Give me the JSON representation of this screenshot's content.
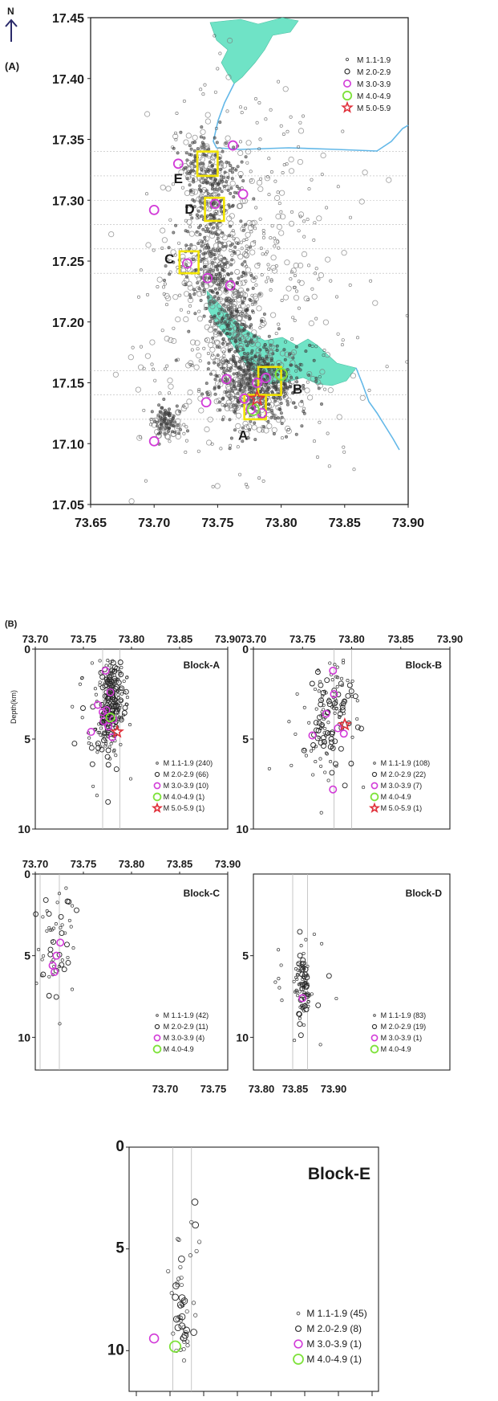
{
  "figure": {
    "panel_a_label": "(A)",
    "panel_b_label": "(B)",
    "north_label": "N",
    "depth_axis_label": "Depth(km)"
  },
  "colors": {
    "m1": "#555555",
    "m2": "#333333",
    "m3": "#d23bd8",
    "m4": "#7ee23a",
    "m5": "#e0303a",
    "water": "#6fe3c6",
    "river": "#63b8e8",
    "box": "#f2e400",
    "grid": "#b9b9b9"
  },
  "chart_data": [
    {
      "type": "scatter",
      "name": "map",
      "title": "",
      "xlabel": "",
      "ylabel": "",
      "xlim": [
        73.65,
        73.9
      ],
      "ylim": [
        17.05,
        17.45
      ],
      "x_ticks": [
        "73.65",
        "73.70",
        "73.75",
        "73.80",
        "73.85",
        "73.90"
      ],
      "y_ticks": [
        "17.05",
        "17.10",
        "17.15",
        "17.20",
        "17.25",
        "17.30",
        "17.35",
        "17.40",
        "17.45"
      ],
      "legend": [
        "M 1.1-1.9",
        "M 2.0-2.9",
        "M 3.0-3.9",
        "M 4.0-4.9",
        "M 5.0-5.9"
      ],
      "legend_position": "top-right",
      "block_labels": [
        {
          "text": "A",
          "x": 73.77,
          "y": 17.107
        },
        {
          "text": "B",
          "x": 73.813,
          "y": 17.145
        },
        {
          "text": "C",
          "x": 73.712,
          "y": 17.252
        },
        {
          "text": "D",
          "x": 73.728,
          "y": 17.293
        },
        {
          "text": "E",
          "x": 73.719,
          "y": 17.318
        }
      ],
      "blocks": [
        {
          "x0": 73.734,
          "x1": 73.75,
          "y0": 17.32,
          "y1": 17.34
        },
        {
          "x0": 73.74,
          "x1": 73.755,
          "y0": 17.283,
          "y1": 17.302
        },
        {
          "x0": 73.72,
          "x1": 73.735,
          "y0": 17.24,
          "y1": 17.258
        },
        {
          "x0": 73.782,
          "x1": 73.8,
          "y0": 17.14,
          "y1": 17.163
        },
        {
          "x0": 73.771,
          "x1": 73.788,
          "y0": 17.12,
          "y1": 17.14
        }
      ],
      "m3_events": [
        [
          73.719,
          17.33
        ],
        [
          73.762,
          17.345
        ],
        [
          73.7,
          17.292
        ],
        [
          73.77,
          17.305
        ],
        [
          73.726,
          17.248
        ],
        [
          73.742,
          17.236
        ],
        [
          73.76,
          17.23
        ],
        [
          73.757,
          17.153
        ],
        [
          73.741,
          17.134
        ],
        [
          73.781,
          17.15
        ],
        [
          73.771,
          17.137
        ],
        [
          73.776,
          17.128
        ],
        [
          73.788,
          17.154
        ],
        [
          73.7,
          17.102
        ],
        [
          73.748,
          17.297
        ],
        [
          73.785,
          17.125
        ]
      ],
      "m4_events": [
        [
          73.8,
          17.157
        ],
        [
          73.778,
          17.128
        ]
      ],
      "m5_events": [
        [
          73.781,
          17.137
        ]
      ],
      "clusters": [
        {
          "cx": 73.78,
          "cy": 17.15,
          "sx": 0.018,
          "sy": 0.016,
          "n": 620
        },
        {
          "cx": 73.762,
          "cy": 17.2,
          "sx": 0.01,
          "sy": 0.022,
          "n": 260
        },
        {
          "cx": 73.745,
          "cy": 17.245,
          "sx": 0.014,
          "sy": 0.018,
          "n": 230
        },
        {
          "cx": 73.747,
          "cy": 17.3,
          "sx": 0.01,
          "sy": 0.018,
          "n": 190
        },
        {
          "cx": 73.742,
          "cy": 17.33,
          "sx": 0.01,
          "sy": 0.012,
          "n": 130
        },
        {
          "cx": 73.71,
          "cy": 17.117,
          "sx": 0.006,
          "sy": 0.008,
          "n": 110
        },
        {
          "cx": 73.77,
          "cy": 17.26,
          "sx": 0.03,
          "sy": 0.07,
          "n": 260
        },
        {
          "cx": 73.8,
          "cy": 17.2,
          "sx": 0.045,
          "sy": 0.08,
          "n": 160
        },
        {
          "cx": 73.73,
          "cy": 17.18,
          "sx": 0.035,
          "sy": 0.06,
          "n": 110
        }
      ]
    },
    {
      "type": "scatter",
      "name": "Block-A",
      "title": "Block-A",
      "xlabel": "",
      "ylabel": "Depth(km)",
      "xlim": [
        73.7,
        73.9
      ],
      "ylim": [
        10,
        0
      ],
      "x_ticks": [
        "73.70",
        "73.75",
        "73.80",
        "73.85",
        "73.90"
      ],
      "y_ticks": [
        "0",
        "5",
        "10"
      ],
      "legend": [
        "M 1.1-1.9 (240)",
        "M 2.0-2.9 (66)",
        "M 3.0-3.9 (10)",
        "M 4.0-4.9 (1)",
        "M 5.0-5.9 (1)"
      ],
      "legend_position": "bottom-right",
      "bounds": [
        73.77,
        73.788
      ],
      "m3_events": [
        [
          73.773,
          1.2
        ],
        [
          73.778,
          2.4
        ],
        [
          73.765,
          3.1
        ],
        [
          73.77,
          3.5
        ],
        [
          73.781,
          3.9
        ],
        [
          73.776,
          4.3
        ],
        [
          73.758,
          4.6
        ],
        [
          73.774,
          3.4
        ],
        [
          73.78,
          4.9
        ],
        [
          73.771,
          4.0
        ]
      ],
      "m4_events": [
        [
          73.778,
          3.8
        ]
      ],
      "m5_events": [
        [
          73.785,
          4.6
        ]
      ],
      "clusters": [
        {
          "cx": 73.779,
          "cy": 3.2,
          "sx": 0.006,
          "sy": 1.4,
          "n": 240
        },
        {
          "cx": 73.77,
          "cy": 4.0,
          "sx": 0.015,
          "sy": 1.6,
          "n": 60
        }
      ]
    },
    {
      "type": "scatter",
      "name": "Block-B",
      "title": "Block-B",
      "xlabel": "",
      "ylabel": "",
      "xlim": [
        73.7,
        73.9
      ],
      "ylim": [
        10,
        0
      ],
      "x_ticks": [
        "73.70",
        "73.75",
        "73.80",
        "73.85",
        "73.90"
      ],
      "y_ticks": [
        "0",
        "5",
        "10"
      ],
      "legend": [
        "M 1.1-1.9 (108)",
        "M 2.0-2.9 (22)",
        "M 3.0-3.9 (7)",
        "M 4.0-4.9",
        "M 5.0-5.9 (1)"
      ],
      "legend_position": "bottom-right",
      "bounds": [
        73.782,
        73.8
      ],
      "m3_events": [
        [
          73.781,
          1.2
        ],
        [
          73.782,
          2.5
        ],
        [
          73.774,
          3.6
        ],
        [
          73.786,
          4.4
        ],
        [
          73.792,
          4.7
        ],
        [
          73.76,
          4.8
        ],
        [
          73.781,
          7.8
        ]
      ],
      "m4_events": [],
      "m5_events": [
        [
          73.793,
          4.2
        ]
      ],
      "clusters": [
        {
          "cx": 73.78,
          "cy": 3.5,
          "sx": 0.01,
          "sy": 1.5,
          "n": 120
        },
        {
          "cx": 73.765,
          "cy": 5.5,
          "sx": 0.02,
          "sy": 1.6,
          "n": 30
        }
      ]
    },
    {
      "type": "scatter",
      "name": "Block-C",
      "title": "Block-C",
      "xlabel": "",
      "ylabel": "",
      "xlim": [
        73.7,
        73.9
      ],
      "ylim": [
        12,
        0
      ],
      "x_ticks": [
        "73.70",
        "73.75",
        "73.80",
        "73.85",
        "73.90"
      ],
      "y_ticks": [
        "0",
        "5",
        "10"
      ],
      "legend": [
        "M 1.1-1.9 (42)",
        "M 2.0-2.9 (11)",
        "M 3.0-3.9 (4)",
        "M 4.0-4.9"
      ],
      "legend_position": "bottom-right",
      "bounds": [
        73.705,
        73.725
      ],
      "m3_events": [
        [
          73.726,
          4.2
        ],
        [
          73.722,
          5.0
        ],
        [
          73.718,
          5.6
        ],
        [
          73.72,
          6.0
        ]
      ],
      "m4_events": [],
      "m5_events": [],
      "clusters": [
        {
          "cx": 73.72,
          "cy": 4.5,
          "sx": 0.012,
          "sy": 2.0,
          "n": 45
        },
        {
          "cx": 73.725,
          "cy": 1.8,
          "sx": 0.012,
          "sy": 0.8,
          "n": 12
        }
      ]
    },
    {
      "type": "scatter",
      "name": "Block-D",
      "title": "Block-D",
      "xlabel": "",
      "ylabel": "",
      "xlim": [
        73.7,
        73.9
      ],
      "ylim": [
        12,
        0
      ],
      "x_ticks": [],
      "y_ticks": [
        "5",
        "10"
      ],
      "legend": [
        "M 1.1-1.9 (83)",
        "M 2.0-2.9 (19)",
        "M 3.0-3.9 (1)",
        "M 4.0-4.9"
      ],
      "legend_position": "bottom-right",
      "bounds": [
        73.74,
        73.755
      ],
      "m3_events": [
        [
          73.75,
          7.6
        ]
      ],
      "m4_events": [],
      "m5_events": [],
      "clusters": [
        {
          "cx": 73.75,
          "cy": 6.8,
          "sx": 0.004,
          "sy": 1.2,
          "n": 90
        },
        {
          "cx": 73.745,
          "cy": 5.5,
          "sx": 0.02,
          "sy": 2.0,
          "n": 15
        }
      ]
    },
    {
      "type": "scatter",
      "name": "Block-E",
      "title": "Block-E",
      "xlabel": "",
      "ylabel": "",
      "xlim": [
        73.7,
        73.9
      ],
      "ylim": [
        12,
        0
      ],
      "x_ticks": [
        "73.70",
        "73.75",
        "73.80",
        "73.85",
        "73.90"
      ],
      "y_ticks": [
        "0",
        "5",
        "10"
      ],
      "legend": [
        "M 1.1-1.9 (45)",
        "M 2.0-2.9 (8)",
        "M 3.0-3.9 (1)",
        "M 4.0-4.9 (1)"
      ],
      "legend_position": "bottom-right",
      "bounds": [
        73.735,
        73.75
      ],
      "m3_events": [
        [
          73.72,
          9.4
        ]
      ],
      "m4_events": [
        [
          73.737,
          9.8
        ]
      ],
      "m5_events": [],
      "clusters": [
        {
          "cx": 73.742,
          "cy": 8.2,
          "sx": 0.005,
          "sy": 1.3,
          "n": 45
        },
        {
          "cx": 73.75,
          "cy": 5.0,
          "sx": 0.006,
          "sy": 3.0,
          "n": 8
        }
      ]
    }
  ]
}
